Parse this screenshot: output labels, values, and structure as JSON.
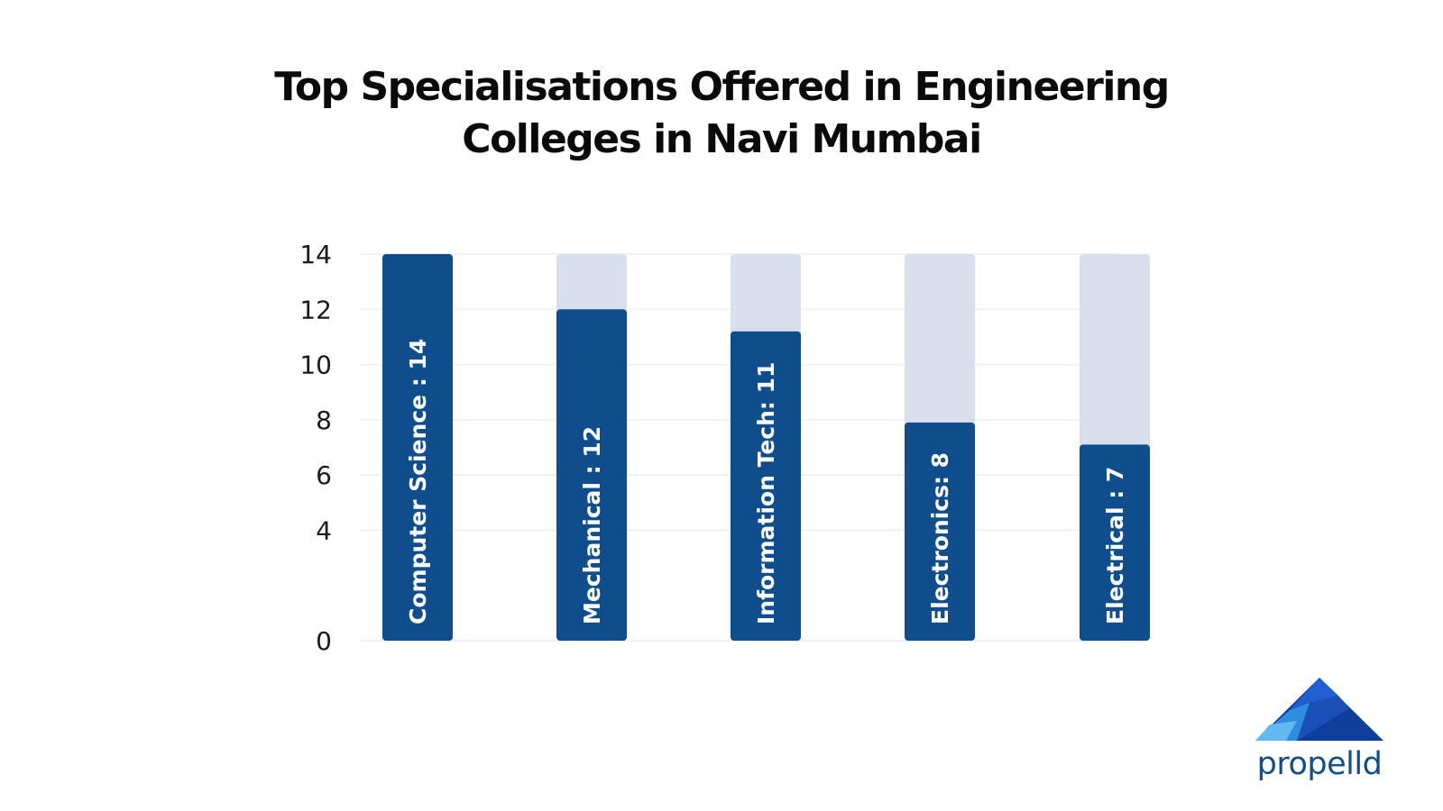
{
  "page": {
    "title_line1": "Top Specialisations Offered in Engineering",
    "title_line2": "Colleges in Navi Mumbai"
  },
  "colors": {
    "bar": "#0f4d8c",
    "bar_track": "#d8e0ee",
    "grid": "#eef1f5",
    "label": "#ffffff",
    "tick": "#1a1a1a"
  },
  "chart_data": {
    "type": "bar",
    "title": "Top Specialisations Offered in Engineering Colleges in Navi Mumbai",
    "xlabel": "",
    "ylabel": "",
    "ylim": [
      0,
      14
    ],
    "yticks": [
      0,
      4,
      6,
      8,
      10,
      12,
      14
    ],
    "grid": true,
    "bars": [
      {
        "category": "Computer Science",
        "value": 14,
        "label": "Computer Science : 14"
      },
      {
        "category": "Mechanical",
        "value": 12,
        "label": "Mechanical : 12"
      },
      {
        "category": "Information Tech",
        "value": 11.2,
        "label": "Information Tech: 11"
      },
      {
        "category": "Electronics",
        "value": 7.9,
        "label": "Electronics: 8"
      },
      {
        "category": "Electrical",
        "value": 7.1,
        "label": "Electrical : 7"
      }
    ]
  },
  "logo": {
    "text": "propelld",
    "icon": "mountain-logo-icon",
    "color": "#0f4d8c"
  }
}
